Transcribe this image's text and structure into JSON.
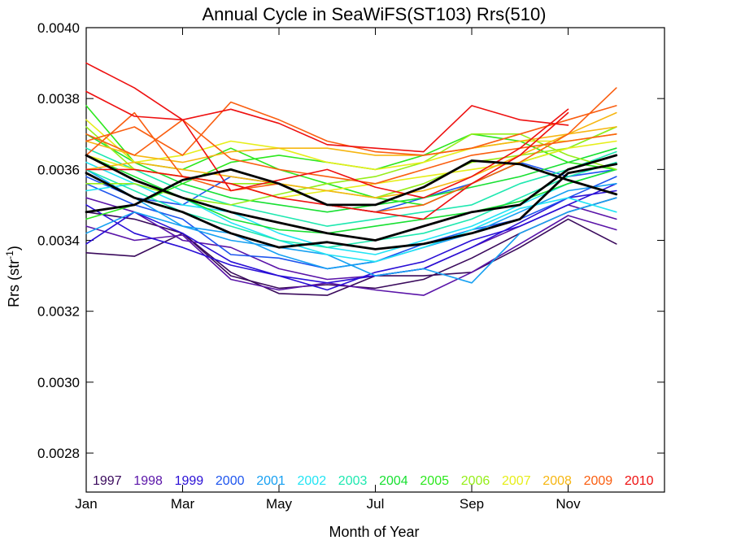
{
  "chart_data": {
    "type": "line",
    "title": "Annual Cycle in SeaWiFS(ST103) Rrs(510)",
    "xlabel": "Month of Year",
    "ylabel_main": "Rrs (str",
    "ylabel_sup": "-1",
    "ylabel_close": ")",
    "xlim": [
      1,
      13
    ],
    "ylim": [
      0.00269,
      0.004
    ],
    "x_ticks": [
      {
        "value": 1,
        "label": "Jan"
      },
      {
        "value": 3,
        "label": "Mar"
      },
      {
        "value": 5,
        "label": "May"
      },
      {
        "value": 7,
        "label": "Jul"
      },
      {
        "value": 9,
        "label": "Sep"
      },
      {
        "value": 11,
        "label": "Nov"
      }
    ],
    "y_ticks": [
      {
        "value": 0.0028,
        "label": "0.0028"
      },
      {
        "value": 0.003,
        "label": "0.0030"
      },
      {
        "value": 0.0032,
        "label": "0.0032"
      },
      {
        "value": 0.0034,
        "label": "0.0034"
      },
      {
        "value": 0.0036,
        "label": "0.0036"
      },
      {
        "value": 0.0038,
        "label": "0.0038"
      },
      {
        "value": 0.004,
        "label": "0.0040"
      }
    ],
    "legend_placement": "bottom",
    "legend": [
      {
        "year": "1997",
        "color": "#3a0a5c"
      },
      {
        "year": "1998",
        "color": "#5a14a8"
      },
      {
        "year": "1999",
        "color": "#2a0fd6"
      },
      {
        "year": "2000",
        "color": "#1e55ee"
      },
      {
        "year": "2001",
        "color": "#16a0f2"
      },
      {
        "year": "2002",
        "color": "#22e4f4"
      },
      {
        "year": "2003",
        "color": "#1ee8b0"
      },
      {
        "year": "2004",
        "color": "#18e032"
      },
      {
        "year": "2005",
        "color": "#2ce81e"
      },
      {
        "year": "2006",
        "color": "#96ee1a"
      },
      {
        "year": "2007",
        "color": "#e6ee1a"
      },
      {
        "year": "2008",
        "color": "#f6b612"
      },
      {
        "year": "2009",
        "color": "#fa5e10"
      },
      {
        "year": "2010",
        "color": "#ee1010"
      }
    ],
    "series": [
      {
        "color": "#3a0a5c",
        "width": 1.6,
        "x": [
          1,
          2,
          3,
          4,
          5,
          6,
          7,
          8,
          9,
          10,
          11,
          12
        ],
        "y": [
          0.003365,
          0.003355,
          0.00342,
          0.0033,
          0.003265,
          0.003275,
          0.003265,
          0.00329,
          0.00335,
          0.00342,
          0.00348,
          0.00352
        ]
      },
      {
        "color": "#3a0a5c",
        "width": 1.6,
        "x": [
          1,
          2,
          3,
          4,
          5,
          6,
          7,
          8,
          9,
          10,
          11,
          12
        ],
        "y": [
          0.00348,
          0.00346,
          0.00342,
          0.00331,
          0.00325,
          0.003245,
          0.0033,
          0.0033,
          0.00331,
          0.00338,
          0.00346,
          0.00339
        ]
      },
      {
        "color": "#5a14a8",
        "width": 1.6,
        "x": [
          1,
          2,
          3,
          4,
          5,
          6,
          7,
          8,
          9,
          10,
          11,
          12
        ],
        "y": [
          0.00344,
          0.0034,
          0.003415,
          0.00329,
          0.00326,
          0.00328,
          0.00326,
          0.003245,
          0.00331,
          0.00339,
          0.00347,
          0.00343
        ]
      },
      {
        "color": "#5a14a8",
        "width": 1.6,
        "x": [
          1,
          2,
          3,
          4,
          5,
          6,
          7,
          8,
          9,
          10,
          11,
          12
        ],
        "y": [
          0.00352,
          0.00348,
          0.0034,
          0.00338,
          0.00332,
          0.00329,
          0.0033,
          0.00332,
          0.00338,
          0.00344,
          0.0035,
          0.00346
        ]
      },
      {
        "color": "#2a0fd6",
        "width": 1.6,
        "x": [
          1,
          2,
          3,
          4,
          5,
          6,
          7,
          8,
          9,
          10,
          11,
          12
        ],
        "y": [
          0.00339,
          0.00348,
          0.00342,
          0.00334,
          0.0033,
          0.00326,
          0.00331,
          0.00334,
          0.0034,
          0.00344,
          0.0035,
          0.00356
        ]
      },
      {
        "color": "#2a0fd6",
        "width": 1.6,
        "x": [
          1,
          2,
          3,
          4,
          5,
          6,
          7,
          8,
          9,
          10,
          11,
          12
        ],
        "y": [
          0.0035,
          0.00342,
          0.00338,
          0.00333,
          0.0033,
          0.00328,
          0.0033,
          0.00332,
          0.00338,
          0.00345,
          0.00352,
          0.00354
        ]
      },
      {
        "color": "#1e55ee",
        "width": 1.6,
        "x": [
          1,
          2,
          3,
          4,
          5,
          6,
          7,
          8,
          9,
          10,
          11,
          12
        ],
        "y": [
          0.00356,
          0.0035,
          0.00346,
          0.00336,
          0.00335,
          0.00332,
          0.00334,
          0.00339,
          0.00343,
          0.00346,
          0.00352,
          0.00358
        ]
      },
      {
        "color": "#1e55ee",
        "width": 1.6,
        "x": [
          1,
          2,
          3,
          4,
          5,
          6,
          7,
          8,
          9,
          10,
          11,
          12
        ],
        "y": [
          0.00358,
          0.00352,
          0.0035,
          0.00358,
          0.00356,
          0.0035,
          0.00348,
          0.00352,
          0.00356,
          0.00362,
          0.00358,
          0.0036
        ]
      },
      {
        "color": "#16a0f2",
        "width": 1.6,
        "x": [
          1,
          2,
          3,
          4,
          5,
          6,
          7,
          8,
          9,
          10,
          11,
          12
        ],
        "y": [
          0.00342,
          0.00348,
          0.00344,
          0.0034,
          0.00338,
          0.00336,
          0.0033,
          0.00332,
          0.00328,
          0.00342,
          0.00348,
          0.00352
        ]
      },
      {
        "color": "#16a0f2",
        "width": 1.6,
        "x": [
          1,
          2,
          3,
          4,
          5,
          6,
          7,
          8,
          9,
          10,
          11,
          12
        ],
        "y": [
          0.0036,
          0.00352,
          0.00344,
          0.00342,
          0.00336,
          0.00332,
          0.00334,
          0.00338,
          0.00342,
          0.00348,
          0.00354,
          0.00356
        ]
      },
      {
        "color": "#22e4f4",
        "width": 1.6,
        "x": [
          1,
          2,
          3,
          4,
          5,
          6,
          7,
          8,
          9,
          10,
          11,
          12
        ],
        "y": [
          0.00362,
          0.00356,
          0.0035,
          0.00348,
          0.00342,
          0.00338,
          0.00336,
          0.0034,
          0.00344,
          0.0035,
          0.00356,
          0.0036
        ]
      },
      {
        "color": "#22e4f4",
        "width": 1.6,
        "x": [
          1,
          2,
          3,
          4,
          5,
          6,
          7,
          8,
          9,
          10,
          11,
          12
        ],
        "y": [
          0.00354,
          0.00356,
          0.00352,
          0.00345,
          0.0034,
          0.00336,
          0.00334,
          0.00338,
          0.00343,
          0.00349,
          0.00352,
          0.00348
        ]
      },
      {
        "color": "#1ee8b0",
        "width": 1.6,
        "x": [
          1,
          2,
          3,
          4,
          5,
          6,
          7,
          8,
          9,
          10,
          11,
          12
        ],
        "y": [
          0.0036,
          0.00354,
          0.00348,
          0.00344,
          0.0034,
          0.00338,
          0.0034,
          0.00342,
          0.00346,
          0.00352,
          0.00358,
          0.00362
        ]
      },
      {
        "color": "#1ee8b0",
        "width": 1.6,
        "x": [
          1,
          2,
          3,
          4,
          5,
          6,
          7,
          8,
          9,
          10,
          11,
          12
        ],
        "y": [
          0.00366,
          0.0036,
          0.00354,
          0.0035,
          0.00347,
          0.00344,
          0.00346,
          0.00348,
          0.0035,
          0.00356,
          0.0036,
          0.00365
        ]
      },
      {
        "color": "#18e032",
        "width": 1.6,
        "x": [
          1,
          2,
          3,
          4,
          5,
          6,
          7,
          8,
          9,
          10,
          11,
          12
        ],
        "y": [
          0.00364,
          0.00358,
          0.00352,
          0.00346,
          0.00343,
          0.00342,
          0.00344,
          0.00346,
          0.00348,
          0.00351,
          0.00356,
          0.0036
        ]
      },
      {
        "color": "#18e032",
        "width": 1.6,
        "x": [
          1,
          2,
          3,
          4,
          5,
          6,
          7,
          8,
          9,
          10,
          11,
          12
        ],
        "y": [
          0.0037,
          0.00362,
          0.00356,
          0.00352,
          0.0035,
          0.00348,
          0.0035,
          0.00352,
          0.00355,
          0.00358,
          0.00362,
          0.00366
        ]
      },
      {
        "color": "#2ce81e",
        "width": 1.6,
        "x": [
          1,
          2,
          3,
          4,
          5,
          6,
          7,
          8,
          9,
          10,
          11,
          12
        ],
        "y": [
          0.00378,
          0.00362,
          0.0036,
          0.00366,
          0.0036,
          0.00356,
          0.00352,
          0.0035,
          0.00356,
          0.00362,
          0.00366,
          0.00372
        ]
      },
      {
        "color": "#2ce81e",
        "width": 1.6,
        "x": [
          1,
          2,
          3,
          4,
          5,
          6,
          7,
          8,
          9,
          10,
          11,
          12
        ],
        "y": [
          0.00346,
          0.0035,
          0.00356,
          0.00362,
          0.00364,
          0.00362,
          0.0036,
          0.00364,
          0.0037,
          0.00368,
          0.00362,
          0.0036
        ]
      },
      {
        "color": "#96ee1a",
        "width": 1.6,
        "x": [
          1,
          2,
          3,
          4,
          5,
          6,
          7,
          8,
          9,
          10,
          11,
          12
        ],
        "y": [
          0.00372,
          0.0036,
          0.00358,
          0.00356,
          0.00356,
          0.00354,
          0.00352,
          0.00356,
          0.00362,
          0.00364,
          0.00366,
          0.00372
        ]
      },
      {
        "color": "#96ee1a",
        "width": 1.6,
        "x": [
          1,
          2,
          3,
          4,
          5,
          6,
          7,
          8,
          9,
          10,
          11,
          12
        ],
        "y": [
          0.00356,
          0.00356,
          0.00352,
          0.0035,
          0.00353,
          0.00356,
          0.00358,
          0.00362,
          0.0037,
          0.0037,
          0.00364,
          0.0036
        ]
      },
      {
        "color": "#e6ee1a",
        "width": 1.6,
        "x": [
          1,
          2,
          3,
          4,
          5,
          6,
          7,
          8,
          9,
          10,
          11,
          12
        ],
        "y": [
          0.00374,
          0.00362,
          0.00364,
          0.00368,
          0.00366,
          0.00362,
          0.0036,
          0.00362,
          0.00366,
          0.00368,
          0.00368,
          0.0037
        ]
      },
      {
        "color": "#e6ee1a",
        "width": 1.6,
        "x": [
          1,
          2,
          3,
          4,
          5,
          6,
          7,
          8,
          9,
          10,
          11,
          12
        ],
        "y": [
          0.00364,
          0.0036,
          0.00358,
          0.00356,
          0.00352,
          0.00354,
          0.00356,
          0.00358,
          0.0036,
          0.00362,
          0.00366,
          0.00368
        ]
      },
      {
        "color": "#f6b612",
        "width": 1.6,
        "x": [
          1,
          2,
          3,
          4,
          5,
          6,
          7,
          8,
          9,
          10,
          11,
          12
        ],
        "y": [
          0.00368,
          0.00364,
          0.00362,
          0.00365,
          0.00366,
          0.00366,
          0.00364,
          0.00364,
          0.00366,
          0.00368,
          0.0037,
          0.00372
        ]
      },
      {
        "color": "#f6b612",
        "width": 1.6,
        "x": [
          1,
          2,
          3,
          4,
          5,
          6,
          7,
          8,
          9,
          10,
          11,
          12
        ],
        "y": [
          0.0036,
          0.00362,
          0.0036,
          0.00358,
          0.00356,
          0.00354,
          0.00352,
          0.00354,
          0.00358,
          0.00364,
          0.0037,
          0.00376
        ]
      },
      {
        "color": "#fa5e10",
        "width": 1.6,
        "x": [
          1,
          2,
          3,
          4,
          5,
          6,
          7,
          8,
          9,
          10,
          11,
          12
        ],
        "y": [
          0.00364,
          0.00376,
          0.00358,
          0.00354,
          0.00356,
          0.0035,
          0.00348,
          0.0035,
          0.00356,
          0.00362,
          0.0037,
          0.00383
        ]
      },
      {
        "color": "#fa5e10",
        "width": 1.6,
        "x": [
          1,
          2,
          3,
          4,
          5,
          6,
          7,
          8,
          9,
          10,
          11,
          12
        ],
        "y": [
          0.00368,
          0.00372,
          0.00364,
          0.00379,
          0.00374,
          0.00368,
          0.00365,
          0.00364,
          0.00366,
          0.0037,
          0.00374,
          0.00378
        ]
      },
      {
        "color": "#fa5e10",
        "width": 1.6,
        "x": [
          1,
          2,
          3,
          4,
          5,
          6,
          7,
          8,
          9,
          10,
          11,
          12
        ],
        "y": [
          0.0037,
          0.00364,
          0.00374,
          0.00363,
          0.0036,
          0.00358,
          0.00356,
          0.0036,
          0.00364,
          0.00366,
          0.00368,
          0.0037
        ]
      },
      {
        "color": "#ee1010",
        "width": 1.6,
        "x": [
          1,
          2,
          3,
          4,
          5,
          6,
          7,
          8,
          9,
          10,
          11
        ],
        "y": [
          0.0039,
          0.00383,
          0.00374,
          0.00377,
          0.00373,
          0.00367,
          0.00366,
          0.00365,
          0.00378,
          0.00374,
          0.003725
        ]
      },
      {
        "color": "#ee1010",
        "width": 1.6,
        "x": [
          1,
          2,
          3,
          4,
          5,
          6,
          7,
          8,
          9,
          10,
          11
        ],
        "y": [
          0.00382,
          0.00375,
          0.00374,
          0.00354,
          0.00357,
          0.0036,
          0.00355,
          0.00352,
          0.00358,
          0.00366,
          0.00377
        ]
      },
      {
        "color": "#ee1010",
        "width": 1.6,
        "x": [
          1,
          2,
          3,
          4,
          5,
          6,
          7,
          8,
          9,
          10,
          11
        ],
        "y": [
          0.0036,
          0.0036,
          0.00358,
          0.00356,
          0.00352,
          0.0035,
          0.00348,
          0.00346,
          0.00356,
          0.00364,
          0.00376
        ]
      },
      {
        "color": "#000000",
        "width": 2.8,
        "x": [
          1,
          2,
          3,
          4,
          5,
          6,
          7,
          8,
          9,
          10,
          11,
          12
        ],
        "y": [
          0.00348,
          0.0035,
          0.00357,
          0.0036,
          0.00356,
          0.0035,
          0.0035,
          0.00355,
          0.003625,
          0.003615,
          0.00357,
          0.00353
        ]
      },
      {
        "color": "#000000",
        "width": 2.8,
        "x": [
          1,
          2,
          3,
          4,
          5,
          6,
          7,
          8,
          9,
          10,
          11,
          12
        ],
        "y": [
          0.00364,
          0.00357,
          0.00352,
          0.00348,
          0.00345,
          0.00342,
          0.0034,
          0.00344,
          0.00348,
          0.0035,
          0.0036,
          0.00364
        ]
      },
      {
        "color": "#000000",
        "width": 2.8,
        "x": [
          1,
          2,
          3,
          4,
          5,
          6,
          7,
          8,
          9,
          10,
          11,
          12
        ],
        "y": [
          0.00359,
          0.00352,
          0.00348,
          0.00342,
          0.00338,
          0.003395,
          0.003375,
          0.00339,
          0.00342,
          0.00346,
          0.00359,
          0.003615
        ]
      }
    ]
  }
}
